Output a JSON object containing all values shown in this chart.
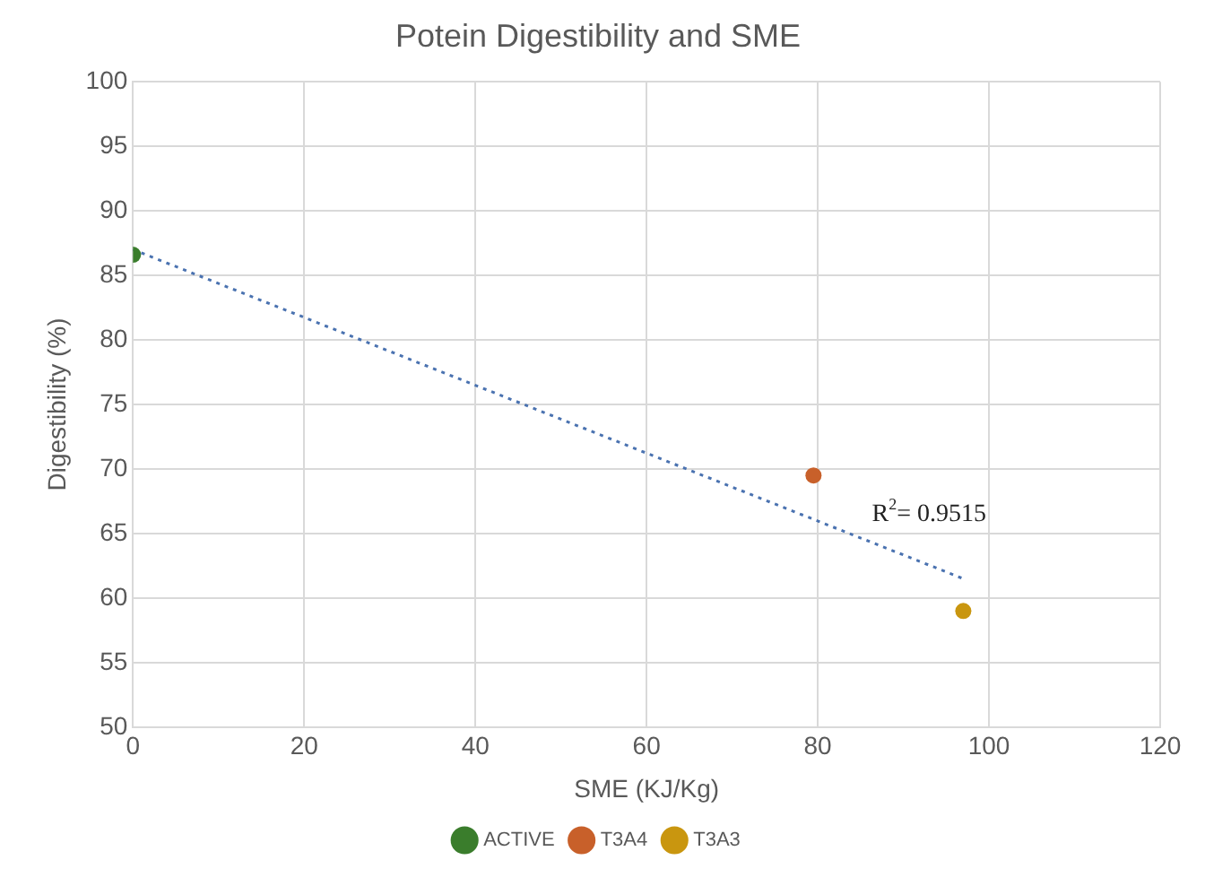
{
  "chart_data": {
    "type": "scatter",
    "title": "Potein Digestibility and SME",
    "xlabel": "SME (KJ/Kg)",
    "ylabel": "Digestibility (%)",
    "series": [
      {
        "name": "ACTIVE",
        "color": "#3a7d2c",
        "x": [
          0
        ],
        "values": [
          86.6
        ]
      },
      {
        "name": "T3A4",
        "color": "#c8602a",
        "x": [
          79.5
        ],
        "values": [
          69.5
        ]
      },
      {
        "name": "T3A3",
        "color": "#c9960f",
        "x": [
          97
        ],
        "values": [
          59
        ]
      },
      {
        "type": "line",
        "color": "#4a72b0",
        "line_style": "dotted",
        "marker": "none",
        "x": [
          0,
          97
        ],
        "values": [
          87,
          61.5
        ]
      }
    ],
    "annotations": [
      "R$^{2}$= 0.9515"
    ],
    "xlim": [
      0,
      120
    ],
    "xticks": [
      0,
      20,
      40,
      60,
      80,
      100,
      120
    ],
    "ylim": [
      50,
      100
    ],
    "yticks": [
      50,
      55,
      60,
      65,
      70,
      75,
      80,
      85,
      90,
      95,
      100
    ],
    "grid": true,
    "legend": "bottom",
    "marker": "circle"
  }
}
